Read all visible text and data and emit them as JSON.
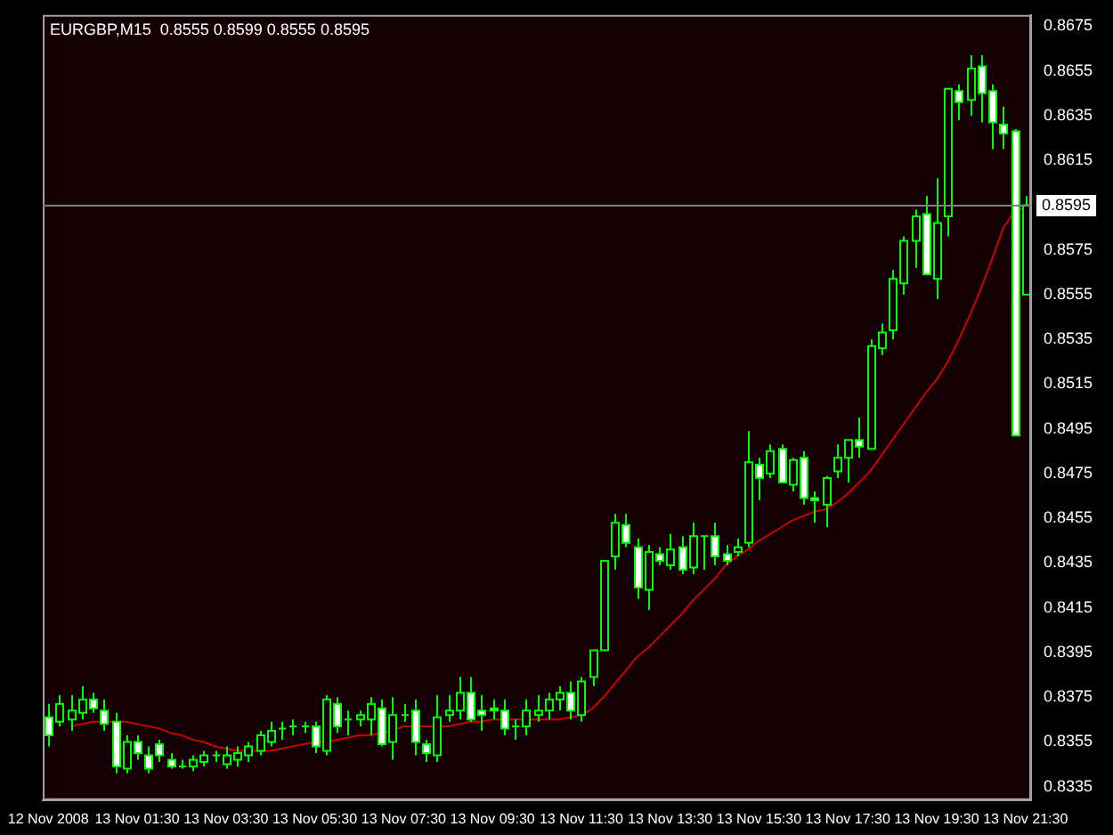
{
  "chart_data": {
    "type": "candlestick",
    "title": "EURGBP,M15  0.8555 0.8599 0.8555 0.8595",
    "color": "#00ff00",
    "categories": [
      "12 Nov 2008",
      null,
      null,
      null,
      null,
      null,
      null,
      null,
      "13 Nov 01:30",
      null,
      null,
      null,
      null,
      null,
      null,
      null,
      "13 Nov 03:30",
      null,
      null,
      null,
      null,
      null,
      null,
      null,
      "13 Nov 05:30",
      null,
      null,
      null,
      null,
      null,
      null,
      null,
      "13 Nov 07:30",
      null,
      null,
      null,
      null,
      null,
      null,
      null,
      "13 Nov 09:30",
      null,
      null,
      null,
      null,
      null,
      null,
      null,
      "13 Nov 11:30",
      null,
      null,
      null,
      null,
      null,
      null,
      null,
      "13 Nov 13:30",
      null,
      null,
      null,
      null,
      null,
      null,
      null,
      "13 Nov 15:30",
      null,
      null,
      null,
      null,
      null,
      null,
      null,
      "13 Nov 17:30",
      null,
      null,
      null,
      null,
      null,
      null,
      null,
      "13 Nov 19:30",
      null,
      null,
      null,
      null,
      null,
      null,
      null,
      "13 Nov 21:30"
    ],
    "ohlc": [
      [
        0.8366,
        0.8372,
        0.8353,
        0.8358
      ],
      [
        0.8364,
        0.8376,
        0.8362,
        0.8372
      ],
      [
        0.8365,
        0.8376,
        0.836,
        0.8369
      ],
      [
        0.8368,
        0.838,
        0.8365,
        0.8374
      ],
      [
        0.8374,
        0.8377,
        0.8368,
        0.837
      ],
      [
        0.8369,
        0.8374,
        0.836,
        0.8363
      ],
      [
        0.8364,
        0.8368,
        0.8341,
        0.8344
      ],
      [
        0.8343,
        0.8358,
        0.8341,
        0.8355
      ],
      [
        0.8355,
        0.8358,
        0.8347,
        0.835
      ],
      [
        0.8349,
        0.8353,
        0.8341,
        0.8343
      ],
      [
        0.8354,
        0.8356,
        0.8346,
        0.8349
      ],
      [
        0.8347,
        0.835,
        0.8343,
        0.8344
      ],
      [
        0.8344,
        0.8347,
        0.8343,
        0.8344
      ],
      [
        0.8344,
        0.8349,
        0.8342,
        0.8347
      ],
      [
        0.8346,
        0.8351,
        0.8344,
        0.8349
      ],
      [
        0.8349,
        0.8351,
        0.8346,
        0.8349
      ],
      [
        0.8345,
        0.8353,
        0.8343,
        0.8349
      ],
      [
        0.8347,
        0.8353,
        0.8344,
        0.835
      ],
      [
        0.8349,
        0.8355,
        0.8346,
        0.8353
      ],
      [
        0.8351,
        0.836,
        0.8349,
        0.8358
      ],
      [
        0.8355,
        0.8364,
        0.8353,
        0.836
      ],
      [
        0.8361,
        0.8364,
        0.8356,
        0.8361
      ],
      [
        0.8362,
        0.8365,
        0.8358,
        0.8362
      ],
      [
        0.8362,
        0.8364,
        0.8359,
        0.8362
      ],
      [
        0.8362,
        0.8364,
        0.835,
        0.8353
      ],
      [
        0.8351,
        0.8376,
        0.8349,
        0.8374
      ],
      [
        0.8372,
        0.8375,
        0.8359,
        0.8362
      ],
      [
        0.8365,
        0.8369,
        0.8358,
        0.8365
      ],
      [
        0.8365,
        0.8369,
        0.8362,
        0.8367
      ],
      [
        0.8365,
        0.8375,
        0.8358,
        0.8372
      ],
      [
        0.837,
        0.8374,
        0.8353,
        0.8354
      ],
      [
        0.8355,
        0.8375,
        0.8347,
        0.8367
      ],
      [
        0.8367,
        0.8372,
        0.8364,
        0.8367
      ],
      [
        0.8369,
        0.8374,
        0.8349,
        0.8355
      ],
      [
        0.8354,
        0.8356,
        0.8346,
        0.835
      ],
      [
        0.8349,
        0.8376,
        0.8346,
        0.8366
      ],
      [
        0.8367,
        0.8376,
        0.8364,
        0.8369
      ],
      [
        0.8369,
        0.8384,
        0.8365,
        0.8377
      ],
      [
        0.8377,
        0.8384,
        0.8364,
        0.8365
      ],
      [
        0.8369,
        0.8376,
        0.836,
        0.8367
      ],
      [
        0.837,
        0.8374,
        0.8365,
        0.8369
      ],
      [
        0.8369,
        0.8374,
        0.8358,
        0.8361
      ],
      [
        0.8362,
        0.8365,
        0.8356,
        0.8362
      ],
      [
        0.8362,
        0.8374,
        0.8358,
        0.8369
      ],
      [
        0.8367,
        0.8376,
        0.8364,
        0.8369
      ],
      [
        0.8369,
        0.8377,
        0.8365,
        0.8374
      ],
      [
        0.8374,
        0.838,
        0.8369,
        0.8377
      ],
      [
        0.8377,
        0.8382,
        0.8365,
        0.8369
      ],
      [
        0.8367,
        0.8384,
        0.8364,
        0.8382
      ],
      [
        0.8384,
        0.8396,
        0.838,
        0.8396
      ],
      [
        0.8396,
        0.8436,
        0.8396,
        0.8436
      ],
      [
        0.8438,
        0.8457,
        0.8432,
        0.8453
      ],
      [
        0.8452,
        0.8457,
        0.8442,
        0.8444
      ],
      [
        0.8442,
        0.8446,
        0.8419,
        0.8424
      ],
      [
        0.8423,
        0.8443,
        0.8414,
        0.844
      ],
      [
        0.8439,
        0.8442,
        0.8434,
        0.8436
      ],
      [
        0.8434,
        0.8448,
        0.8432,
        0.8441
      ],
      [
        0.8442,
        0.8447,
        0.843,
        0.8432
      ],
      [
        0.8433,
        0.8453,
        0.843,
        0.8447
      ],
      [
        0.8447,
        0.8447,
        0.8432,
        0.8447
      ],
      [
        0.8447,
        0.8453,
        0.8434,
        0.8438
      ],
      [
        0.8439,
        0.8443,
        0.8434,
        0.8436
      ],
      [
        0.844,
        0.8446,
        0.8438,
        0.8442
      ],
      [
        0.8444,
        0.8494,
        0.8442,
        0.848
      ],
      [
        0.8479,
        0.8482,
        0.8463,
        0.8473
      ],
      [
        0.8475,
        0.8488,
        0.8473,
        0.8485
      ],
      [
        0.8486,
        0.8488,
        0.8471,
        0.8471
      ],
      [
        0.847,
        0.8482,
        0.8467,
        0.8481
      ],
      [
        0.8482,
        0.8485,
        0.8461,
        0.8464
      ],
      [
        0.8464,
        0.8467,
        0.8453,
        0.8463
      ],
      [
        0.8461,
        0.8474,
        0.8451,
        0.8473
      ],
      [
        0.8476,
        0.8488,
        0.8473,
        0.8482
      ],
      [
        0.8482,
        0.849,
        0.8471,
        0.849
      ],
      [
        0.849,
        0.85,
        0.8482,
        0.8487
      ],
      [
        0.8486,
        0.8535,
        0.8486,
        0.8532
      ],
      [
        0.8531,
        0.8542,
        0.8528,
        0.8538
      ],
      [
        0.8539,
        0.8566,
        0.8535,
        0.8562
      ],
      [
        0.856,
        0.8581,
        0.8555,
        0.8579
      ],
      [
        0.8579,
        0.8593,
        0.8567,
        0.859
      ],
      [
        0.8591,
        0.8599,
        0.8564,
        0.8564
      ],
      [
        0.8562,
        0.8607,
        0.8553,
        0.8587
      ],
      [
        0.859,
        0.8647,
        0.8581,
        0.8647
      ],
      [
        0.8646,
        0.8649,
        0.8633,
        0.8641
      ],
      [
        0.8642,
        0.8662,
        0.8635,
        0.8656
      ],
      [
        0.8657,
        0.8662,
        0.8632,
        0.8645
      ],
      [
        0.8646,
        0.8649,
        0.862,
        0.8632
      ],
      [
        0.8631,
        0.8639,
        0.862,
        0.8627
      ],
      [
        0.8628,
        0.8629,
        0.8492,
        0.8492
      ],
      [
        0.8555,
        0.8599,
        0.8555,
        0.8595
      ]
    ],
    "series": [
      {
        "type": "line",
        "color": "#cc0000",
        "values": [
          null,
          null,
          0.8362,
          0.8363,
          0.8364,
          0.8364,
          0.8364,
          0.8364,
          0.8363,
          0.8362,
          0.8361,
          0.8359,
          0.8358,
          0.8356,
          0.8355,
          0.8353,
          0.8352,
          0.8351,
          0.8351,
          0.8351,
          0.8351,
          0.8352,
          0.8353,
          0.8354,
          0.8355,
          0.8355,
          0.8356,
          0.8357,
          0.8358,
          0.8358,
          0.8359,
          0.836,
          0.8362,
          0.8362,
          0.8362,
          0.8362,
          0.8362,
          0.8363,
          0.8364,
          0.8364,
          0.8365,
          0.8365,
          0.8365,
          0.8365,
          0.8365,
          0.8365,
          0.8365,
          0.8366,
          0.8367,
          0.837,
          0.8375,
          0.8381,
          0.8387,
          0.8393,
          0.8397,
          0.8402,
          0.8407,
          0.8412,
          0.8418,
          0.8423,
          0.8428,
          0.8434,
          0.8438,
          0.8441,
          0.8445,
          0.8448,
          0.8451,
          0.8454,
          0.8456,
          0.8458,
          0.8459,
          0.8462,
          0.8466,
          0.8471,
          0.8476,
          0.8483,
          0.849,
          0.8497,
          0.8504,
          0.8511,
          0.8517,
          0.8525,
          0.8535,
          0.8546,
          0.8558,
          0.8571,
          0.8585,
          0.8592,
          0.8594
        ]
      }
    ],
    "ylim": [
      0.8329,
      0.868
    ],
    "yticks": [
      0.8335,
      0.8355,
      0.8375,
      0.8395,
      0.8415,
      0.8435,
      0.8455,
      0.8475,
      0.8495,
      0.8515,
      0.8535,
      0.8555,
      0.8575,
      0.8595,
      0.8615,
      0.8635,
      0.8655,
      0.8675
    ],
    "ref_lines": [
      {
        "axis": "y",
        "value": 0.8595,
        "label": "0.8595",
        "color": "#808080"
      }
    ],
    "marker": "none",
    "legend": false,
    "grid": false
  }
}
